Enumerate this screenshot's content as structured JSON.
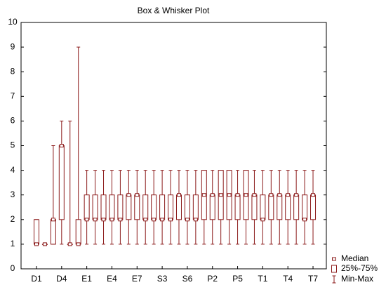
{
  "chart_data": {
    "type": "box",
    "title": "Box & Whisker Plot",
    "categories": [
      "D1",
      null,
      null,
      "D4",
      null,
      null,
      "E1",
      null,
      null,
      "E4",
      null,
      null,
      "E7",
      null,
      null,
      "S3",
      null,
      null,
      "S6",
      null,
      null,
      "P2",
      null,
      null,
      "P5",
      null,
      null,
      "T1",
      null,
      null,
      "T4",
      null,
      null,
      "T7"
    ],
    "min": [
      1,
      1,
      1,
      1,
      1,
      1,
      1,
      1,
      1,
      1,
      1,
      1,
      1,
      1,
      1,
      1,
      1,
      1,
      1,
      1,
      1,
      1,
      1,
      1,
      1,
      1,
      1,
      1,
      1,
      1,
      1,
      1,
      1,
      1
    ],
    "q1": [
      1,
      1,
      1,
      2,
      1,
      1,
      2,
      2,
      2,
      2,
      2,
      2,
      2,
      2,
      2,
      2,
      2,
      2,
      2,
      2,
      2,
      2,
      2,
      2,
      2,
      2,
      2,
      2,
      2,
      2,
      2,
      2,
      2,
      2
    ],
    "median": [
      1,
      1,
      2,
      5,
      1,
      1,
      2,
      2,
      2,
      2,
      2,
      3,
      3,
      2,
      2,
      2,
      2,
      3,
      2,
      2,
      3,
      3,
      3,
      3,
      3,
      3,
      3,
      2,
      3,
      3,
      3,
      3,
      2,
      3
    ],
    "q3": [
      2,
      1,
      2,
      5,
      1,
      2,
      3,
      3,
      3,
      3,
      3,
      3,
      3,
      3,
      3,
      3,
      3,
      3,
      3,
      3,
      4,
      3,
      4,
      4,
      3,
      4,
      3,
      3,
      3,
      3,
      3,
      3,
      3,
      3
    ],
    "max": [
      2,
      1,
      5,
      6,
      6,
      9,
      4,
      4,
      4,
      4,
      4,
      4,
      4,
      4,
      4,
      4,
      4,
      4,
      4,
      4,
      4,
      4,
      4,
      4,
      4,
      4,
      4,
      4,
      4,
      4,
      4,
      4,
      4,
      4
    ],
    "color": "#8b1a1a",
    "legend": [
      "Median",
      "25%-75%",
      "Min-Max"
    ],
    "ylim": [
      0,
      10
    ],
    "yticks": [
      0,
      1,
      2,
      3,
      4,
      5,
      6,
      7,
      8,
      9,
      10
    ],
    "grid": false
  }
}
